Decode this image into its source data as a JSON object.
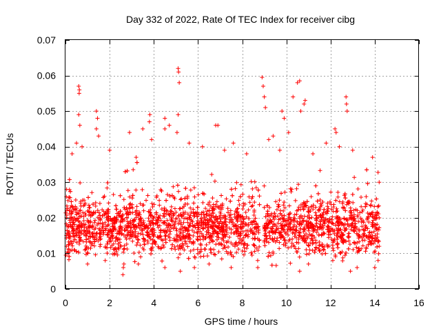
{
  "chart_data": {
    "type": "scatter",
    "title": "Day 332 of 2022, Rate Of TEC Index for receiver cibg",
    "xlabel": "GPS time / hours",
    "ylabel": "ROTI / TECUs",
    "xlim": [
      0,
      16
    ],
    "ylim": [
      0,
      0.07
    ],
    "xticks": [
      0,
      2,
      4,
      6,
      8,
      10,
      12,
      14,
      16
    ],
    "xtick_labels": [
      "0",
      "2",
      "4",
      "6",
      "8",
      "10",
      "12",
      "14",
      "16"
    ],
    "yticks": [
      0,
      0.01,
      0.02,
      0.03,
      0.04,
      0.05,
      0.06,
      0.07
    ],
    "ytick_labels": [
      "0",
      "0.01",
      "0.02",
      "0.03",
      "0.04",
      "0.05",
      "0.06",
      "0.07"
    ],
    "grid": true,
    "marker": "plus",
    "series_color": "#ff0000",
    "data_gap_hours": [
      8.8,
      8.95
    ],
    "data_summary": {
      "x_range": [
        0,
        14.2
      ],
      "typical_band": [
        0.008,
        0.032
      ],
      "approx_point_count": 2600
    },
    "series": [
      {
        "name": "ROTI",
        "points": [
          [
            0.6,
            0.057
          ],
          [
            0.62,
            0.055
          ],
          [
            0.63,
            0.056
          ],
          [
            0.6,
            0.049
          ],
          [
            0.65,
            0.046
          ],
          [
            1.4,
            0.05
          ],
          [
            1.45,
            0.048
          ],
          [
            1.4,
            0.045
          ],
          [
            1.5,
            0.043
          ],
          [
            2.9,
            0.044
          ],
          [
            3.5,
            0.045
          ],
          [
            3.8,
            0.047
          ],
          [
            3.82,
            0.049
          ],
          [
            4.5,
            0.048
          ],
          [
            4.5,
            0.045
          ],
          [
            4.7,
            0.046
          ],
          [
            5.1,
            0.062
          ],
          [
            5.12,
            0.061
          ],
          [
            5.15,
            0.058
          ],
          [
            5.05,
            0.044
          ],
          [
            5.1,
            0.049
          ],
          [
            6.8,
            0.046
          ],
          [
            6.9,
            0.046
          ],
          [
            8.9,
            0.0595
          ],
          [
            8.95,
            0.057
          ],
          [
            9.0,
            0.054
          ],
          [
            9.05,
            0.051
          ],
          [
            9.8,
            0.05
          ],
          [
            9.9,
            0.048
          ],
          [
            10.3,
            0.054
          ],
          [
            10.5,
            0.058
          ],
          [
            10.6,
            0.0585
          ],
          [
            10.65,
            0.05
          ],
          [
            10.8,
            0.052
          ],
          [
            10.85,
            0.053
          ],
          [
            12.2,
            0.045
          ],
          [
            12.25,
            0.044
          ],
          [
            12.7,
            0.054
          ],
          [
            12.72,
            0.052
          ],
          [
            12.75,
            0.05
          ],
          [
            0.3,
            0.038
          ],
          [
            0.5,
            0.041
          ],
          [
            0.75,
            0.04
          ],
          [
            2.0,
            0.039
          ],
          [
            3.2,
            0.037
          ],
          [
            3.9,
            0.042
          ],
          [
            5.6,
            0.041
          ],
          [
            6.2,
            0.04
          ],
          [
            7.2,
            0.039
          ],
          [
            7.6,
            0.041
          ],
          [
            8.2,
            0.038
          ],
          [
            9.2,
            0.042
          ],
          [
            9.4,
            0.043
          ],
          [
            9.7,
            0.039
          ],
          [
            10.1,
            0.044
          ],
          [
            11.2,
            0.038
          ],
          [
            11.8,
            0.041
          ],
          [
            12.4,
            0.04
          ],
          [
            13.0,
            0.039
          ],
          [
            13.9,
            0.037
          ],
          [
            2.6,
            0.004
          ],
          [
            2.62,
            0.006
          ],
          [
            4.5,
            0.006
          ],
          [
            5.2,
            0.005
          ],
          [
            7.5,
            0.006
          ],
          [
            10.6,
            0.005
          ],
          [
            12.9,
            0.005
          ],
          [
            13.2,
            0.006
          ],
          [
            14.0,
            0.006
          ],
          [
            14.15,
            0.008
          ],
          [
            1.0,
            0.007
          ],
          [
            1.8,
            0.008
          ],
          [
            3.3,
            0.007
          ],
          [
            6.5,
            0.007
          ],
          [
            8.7,
            0.008
          ],
          [
            11.0,
            0.007
          ],
          [
            12.1,
            0.008
          ],
          [
            0.05,
            0.012
          ],
          [
            0.05,
            0.02
          ],
          [
            0.05,
            0.028
          ],
          [
            14.2,
            0.03
          ],
          [
            14.2,
            0.02
          ],
          [
            14.2,
            0.012
          ]
        ]
      }
    ]
  }
}
